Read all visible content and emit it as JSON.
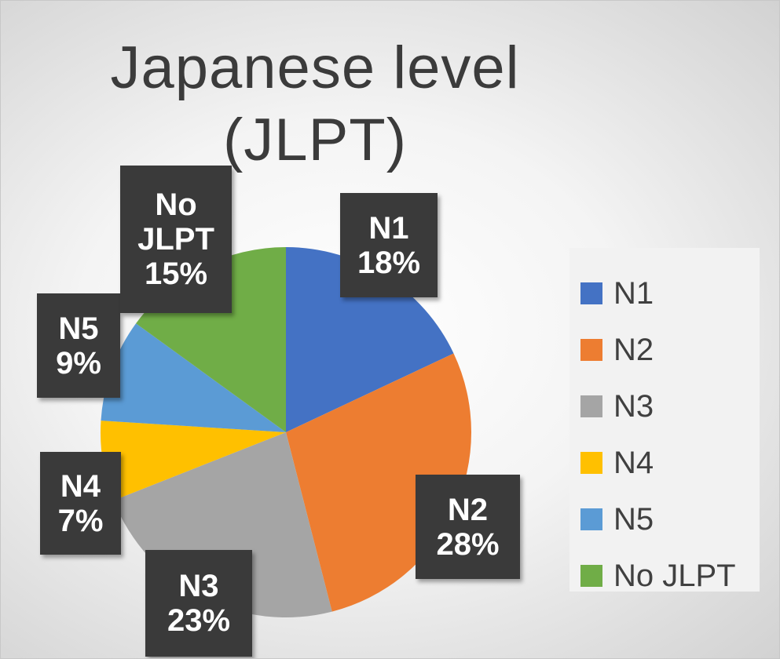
{
  "chart_data": {
    "type": "pie",
    "title": "Japanese level (JLPT)",
    "title_lines": [
      "Japanese level",
      "(JLPT)"
    ],
    "slices": [
      {
        "key": "n1",
        "name": "N1",
        "value": 18,
        "label": "18%",
        "label_lines": [
          "N1",
          "18%"
        ],
        "color": "#4472c4"
      },
      {
        "key": "n2",
        "name": "N2",
        "value": 28,
        "label": "28%",
        "label_lines": [
          "N2",
          "28%"
        ],
        "color": "#ed7d31"
      },
      {
        "key": "n3",
        "name": "N3",
        "value": 23,
        "label": "23%",
        "label_lines": [
          "N3",
          "23%"
        ],
        "color": "#a5a5a5"
      },
      {
        "key": "n4",
        "name": "N4",
        "value": 7,
        "label": "7%",
        "label_lines": [
          "N4",
          "7%"
        ],
        "color": "#ffc000"
      },
      {
        "key": "n5",
        "name": "N5",
        "value": 9,
        "label": "9%",
        "label_lines": [
          "N5",
          "9%"
        ],
        "color": "#5b9bd5"
      },
      {
        "key": "no-jlpt",
        "name": "No JLPT",
        "value": 15,
        "label": "15%",
        "label_lines": [
          "No",
          "JLPT",
          "15%"
        ],
        "color": "#70ad47"
      }
    ],
    "legend_position": "right",
    "data_labels": "category and percentage, dark callout boxes"
  }
}
